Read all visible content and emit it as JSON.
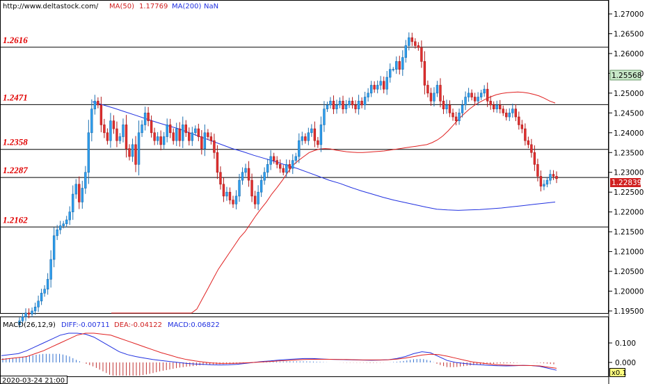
{
  "header": {
    "url": "http://www.deltastock.com/",
    "ma50_label": "MA(50)",
    "ma50_value": "1.17769",
    "ma200_label": "MA(200)",
    "ma200_value": "NaN"
  },
  "macd_header": {
    "label": "MACD(26,12,9)",
    "diff": "DIFF:-0.00711",
    "dea": "DEA:-0.04122",
    "macd": "MACD:0.06822"
  },
  "footer": {
    "datetime": "2020-03-24 21:00",
    "zoom": "x0.1"
  },
  "colors": {
    "bull": "#2f9fef",
    "bear": "#e03030",
    "ma50": "#e02020",
    "ma200": "#2030e0",
    "level_text": "#e00000",
    "current_box": "#d02020",
    "highlight_box": "#c8e8c8"
  },
  "chart_data": [
    {
      "type": "candlestick",
      "ylim": [
        1.194,
        1.2715
      ],
      "y_ticks": [
        "1.27000",
        "1.26500",
        "1.26000",
        "1.25500",
        "1.25000",
        "1.24500",
        "1.24000",
        "1.23500",
        "1.23000",
        "1.22500",
        "1.22000",
        "1.21500",
        "1.21000",
        "1.20500",
        "1.20000",
        "1.19500"
      ],
      "current_price": "1.22839",
      "highlight_price": "1.25568",
      "levels": [
        {
          "label": "1.2616",
          "value": 1.2616
        },
        {
          "label": "1.2471",
          "value": 1.2471
        },
        {
          "label": "1.2358",
          "value": 1.2358
        },
        {
          "label": "1.2287",
          "value": 1.2287
        },
        {
          "label": "1.2162",
          "value": 1.2162
        }
      ],
      "closes": [
        1.1925,
        1.1935,
        1.1945,
        1.1942,
        1.195,
        1.196,
        1.1975,
        1.1995,
        1.2005,
        1.203,
        1.208,
        1.214,
        1.2155,
        1.2165,
        1.217,
        1.218,
        1.22,
        1.2245,
        1.227,
        1.2225,
        1.226,
        1.23,
        1.24,
        1.246,
        1.248,
        1.247,
        1.242,
        1.24,
        1.238,
        1.243,
        1.241,
        1.238,
        1.239,
        1.242,
        1.236,
        1.234,
        1.237,
        1.232,
        1.24,
        1.242,
        1.245,
        1.243,
        1.24,
        1.238,
        1.239,
        1.237,
        1.239,
        1.242,
        1.24,
        1.238,
        1.241,
        1.238,
        1.242,
        1.24,
        1.238,
        1.24,
        1.241,
        1.239,
        1.236,
        1.24,
        1.239,
        1.238,
        1.235,
        1.23,
        1.227,
        1.224,
        1.225,
        1.223,
        1.222,
        1.224,
        1.228,
        1.23,
        1.231,
        1.228,
        1.224,
        1.222,
        1.225,
        1.228,
        1.23,
        1.232,
        1.234,
        1.233,
        1.232,
        1.231,
        1.23,
        1.232,
        1.231,
        1.233,
        1.234,
        1.238,
        1.239,
        1.238,
        1.24,
        1.241,
        1.238,
        1.237,
        1.242,
        1.246,
        1.247,
        1.248,
        1.246,
        1.247,
        1.248,
        1.246,
        1.247,
        1.248,
        1.247,
        1.246,
        1.248,
        1.247,
        1.249,
        1.25,
        1.252,
        1.251,
        1.252,
        1.253,
        1.251,
        1.254,
        1.256,
        1.256,
        1.258,
        1.256,
        1.259,
        1.262,
        1.264,
        1.263,
        1.262,
        1.2615,
        1.258,
        1.252,
        1.25,
        1.248,
        1.25,
        1.252,
        1.248,
        1.246,
        1.247,
        1.245,
        1.244,
        1.243,
        1.245,
        1.247,
        1.249,
        1.25,
        1.249,
        1.248,
        1.249,
        1.25,
        1.251,
        1.248,
        1.247,
        1.246,
        1.247,
        1.246,
        1.245,
        1.244,
        1.245,
        1.246,
        1.244,
        1.242,
        1.241,
        1.238,
        1.237,
        1.235,
        1.232,
        1.229,
        1.2265,
        1.227,
        1.228,
        1.2295,
        1.229,
        1.2284
      ],
      "ma50_values": [
        1.144,
        1.1475,
        1.151,
        1.1545,
        1.158,
        1.1615,
        1.165,
        1.1685,
        1.172,
        1.175,
        1.1782,
        1.181,
        1.184,
        1.187,
        1.19,
        1.193,
        1.1955,
        1.198,
        1.2005,
        1.203,
        1.2055,
        1.2075,
        1.2095,
        1.2115,
        1.2135,
        1.215,
        1.217,
        1.219,
        1.2208,
        1.2225,
        1.2245,
        1.2262,
        1.228,
        1.23,
        1.2318,
        1.233,
        1.234,
        1.235,
        1.2355,
        1.2359,
        1.236,
        1.2359,
        1.2356,
        1.2354,
        1.2352,
        1.2351,
        1.235,
        1.235,
        1.2351,
        1.2352,
        1.2353,
        1.2354,
        1.2356,
        1.2358,
        1.236,
        1.2362,
        1.2364,
        1.2366,
        1.2368,
        1.237,
        1.2375,
        1.2382,
        1.2392,
        1.2405,
        1.242,
        1.2435,
        1.2448,
        1.246,
        1.247,
        1.2478,
        1.2485,
        1.2491,
        1.2496,
        1.2499,
        1.2501,
        1.2502,
        1.2503,
        1.2502,
        1.25,
        1.2497,
        1.2493,
        1.2487,
        1.248,
        1.2475
      ],
      "ma200_values": [
        1.2478,
        1.247,
        1.2462,
        1.2453,
        1.2444,
        1.2435,
        1.2426,
        1.2418,
        1.241,
        1.24,
        1.239,
        1.238,
        1.237,
        1.236,
        1.2352,
        1.2343,
        1.2335,
        1.2327,
        1.2318,
        1.231,
        1.23,
        1.229,
        1.228,
        1.2272,
        1.2262,
        1.2253,
        1.2245,
        1.2237,
        1.223,
        1.2224,
        1.2218,
        1.2212,
        1.2207,
        1.2205,
        1.2204,
        1.2205,
        1.2206,
        1.2208,
        1.221,
        1.2213,
        1.2216,
        1.2219,
        1.2222,
        1.2225
      ],
      "ma200_start": 1.2478
    },
    {
      "type": "macd",
      "ylim": [
        -0.03,
        0.18
      ],
      "y_ticks": [
        "0.100",
        "0.000"
      ],
      "diff": [
        0.035,
        0.04,
        0.045,
        0.06,
        0.08,
        0.1,
        0.12,
        0.14,
        0.15,
        0.15,
        0.145,
        0.13,
        0.105,
        0.08,
        0.055,
        0.04,
        0.03,
        0.022,
        0.015,
        0.01,
        0.005,
        0.0,
        -0.005,
        -0.008,
        -0.01,
        -0.012,
        -0.013,
        -0.012,
        -0.01,
        -0.005,
        0.0,
        0.005,
        0.008,
        0.012,
        0.015,
        0.018,
        0.02,
        0.02,
        0.018,
        0.016,
        0.015,
        0.014,
        0.013,
        0.012,
        0.011,
        0.012,
        0.014,
        0.02,
        0.03,
        0.045,
        0.055,
        0.05,
        0.03,
        0.01,
        0.0,
        -0.005,
        -0.01,
        -0.012,
        -0.015,
        -0.017,
        -0.018,
        -0.017,
        -0.015,
        -0.016,
        -0.02,
        -0.03,
        -0.04
      ],
      "dea": [
        0.015,
        0.02,
        0.025,
        0.03,
        0.045,
        0.06,
        0.08,
        0.1,
        0.12,
        0.14,
        0.15,
        0.15,
        0.145,
        0.14,
        0.125,
        0.11,
        0.095,
        0.08,
        0.065,
        0.05,
        0.038,
        0.025,
        0.015,
        0.008,
        0.002,
        -0.003,
        -0.005,
        -0.005,
        -0.004,
        -0.002,
        0.0,
        0.003,
        0.005,
        0.008,
        0.01,
        0.013,
        0.015,
        0.016,
        0.016,
        0.016,
        0.015,
        0.015,
        0.014,
        0.013,
        0.013,
        0.013,
        0.014,
        0.017,
        0.022,
        0.03,
        0.038,
        0.042,
        0.04,
        0.032,
        0.022,
        0.012,
        0.003,
        -0.003,
        -0.008,
        -0.012,
        -0.014,
        -0.015,
        -0.015,
        -0.016,
        -0.018,
        -0.024,
        -0.03
      ]
    }
  ]
}
